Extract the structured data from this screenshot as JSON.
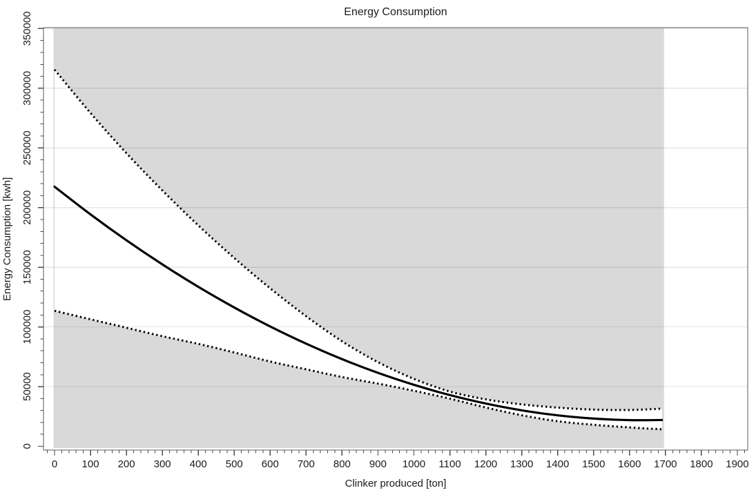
{
  "chart_data": {
    "type": "line",
    "title": "Energy Consumption",
    "xlabel": "Clinker produced [ton]",
    "ylabel": "Energy Consumption [kwh]",
    "xlim": [
      -30,
      1930
    ],
    "ylim": [
      -3000,
      350700
    ],
    "grid": "horizontal-major",
    "legend_position": "none",
    "x_major_ticks": [
      0,
      100,
      200,
      300,
      400,
      500,
      600,
      700,
      800,
      900,
      1000,
      1100,
      1200,
      1300,
      1400,
      1500,
      1600,
      1700,
      1800,
      1900
    ],
    "x_minor_step": 20,
    "y_major_ticks": [
      0,
      50000,
      100000,
      150000,
      200000,
      250000,
      300000,
      350000
    ],
    "y_minor_step": 10000,
    "shaded_region": {
      "x_start": 0,
      "x_end": 1695,
      "color": "#d9d9d9"
    },
    "band_fill_between_bounds": "#ffffff",
    "x": [
      0,
      100,
      200,
      300,
      400,
      500,
      600,
      700,
      800,
      900,
      1000,
      1100,
      1200,
      1300,
      1400,
      1500,
      1600,
      1690
    ],
    "series": [
      {
        "name": "mean-curve",
        "style": "solid",
        "color": "#000000",
        "width": 3.2,
        "values": [
          217500,
          194300,
          172600,
          152400,
          133600,
          116300,
          100400,
          86000,
          73000,
          61500,
          51500,
          42900,
          35800,
          30100,
          25900,
          23200,
          21900,
          22000
        ]
      },
      {
        "name": "upper-bound",
        "style": "dotted",
        "color": "#000000",
        "width": 3,
        "values": [
          315600,
          279300,
          245600,
          214400,
          185100,
          157800,
          132400,
          109000,
          88000,
          70500,
          56500,
          45900,
          39300,
          35100,
          32400,
          30700,
          30400,
          31500
        ]
      },
      {
        "name": "lower-bound",
        "style": "dotted",
        "color": "#000000",
        "width": 3,
        "values": [
          113500,
          106400,
          99300,
          92200,
          85800,
          78600,
          71000,
          64500,
          58000,
          52500,
          46500,
          39900,
          32500,
          26000,
          21000,
          18000,
          15800,
          14200
        ]
      }
    ],
    "colors": {
      "frame": "#808080",
      "tick": "#4a4a4a",
      "tick_label": "#1b1b1b",
      "gridline": "rgba(0,0,0,0.10)",
      "background": "#ffffff"
    }
  }
}
